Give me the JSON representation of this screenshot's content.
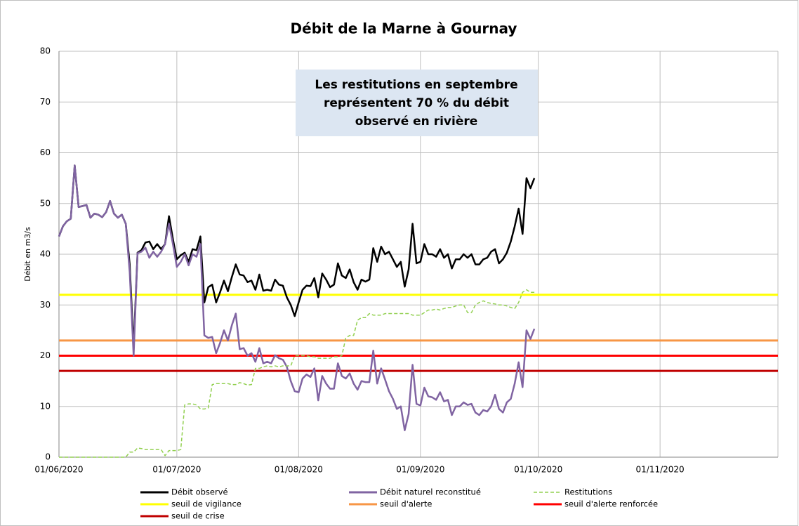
{
  "chart_data": {
    "type": "line",
    "title": "Débit de la Marne à Gournay",
    "ylabel": "Débit en m3/s",
    "annotation": {
      "lines": [
        "Les restitutions en septembre",
        "représentent 70 % du débit",
        "observé en rivière"
      ]
    },
    "x": [
      "2020-06-01",
      "2020-06-02",
      "2020-06-03",
      "2020-06-04",
      "2020-06-05",
      "2020-06-06",
      "2020-06-07",
      "2020-06-08",
      "2020-06-09",
      "2020-06-10",
      "2020-06-11",
      "2020-06-12",
      "2020-06-13",
      "2020-06-14",
      "2020-06-15",
      "2020-06-16",
      "2020-06-17",
      "2020-06-18",
      "2020-06-19",
      "2020-06-20",
      "2020-06-21",
      "2020-06-22",
      "2020-06-23",
      "2020-06-24",
      "2020-06-25",
      "2020-06-26",
      "2020-06-27",
      "2020-06-28",
      "2020-06-29",
      "2020-06-30",
      "2020-07-01",
      "2020-07-02",
      "2020-07-03",
      "2020-07-04",
      "2020-07-05",
      "2020-07-06",
      "2020-07-07",
      "2020-07-08",
      "2020-07-09",
      "2020-07-10",
      "2020-07-11",
      "2020-07-12",
      "2020-07-13",
      "2020-07-14",
      "2020-07-15",
      "2020-07-16",
      "2020-07-17",
      "2020-07-18",
      "2020-07-19",
      "2020-07-20",
      "2020-07-21",
      "2020-07-22",
      "2020-07-23",
      "2020-07-24",
      "2020-07-25",
      "2020-07-26",
      "2020-07-27",
      "2020-07-28",
      "2020-07-29",
      "2020-07-30",
      "2020-07-31",
      "2020-08-01",
      "2020-08-02",
      "2020-08-03",
      "2020-08-04",
      "2020-08-05",
      "2020-08-06",
      "2020-08-07",
      "2020-08-08",
      "2020-08-09",
      "2020-08-10",
      "2020-08-11",
      "2020-08-12",
      "2020-08-13",
      "2020-08-14",
      "2020-08-15",
      "2020-08-16",
      "2020-08-17",
      "2020-08-18",
      "2020-08-19",
      "2020-08-20",
      "2020-08-21",
      "2020-08-22",
      "2020-08-23",
      "2020-08-24",
      "2020-08-25",
      "2020-08-26",
      "2020-08-27",
      "2020-08-28",
      "2020-08-29",
      "2020-08-30",
      "2020-08-31",
      "2020-09-01",
      "2020-09-02",
      "2020-09-03",
      "2020-09-04",
      "2020-09-05",
      "2020-09-06",
      "2020-09-07",
      "2020-09-08",
      "2020-09-09",
      "2020-09-10",
      "2020-09-11",
      "2020-09-12",
      "2020-09-13",
      "2020-09-14",
      "2020-09-15",
      "2020-09-16",
      "2020-09-17",
      "2020-09-18",
      "2020-09-19",
      "2020-09-20",
      "2020-09-21",
      "2020-09-22",
      "2020-09-23",
      "2020-09-24",
      "2020-09-25",
      "2020-09-26",
      "2020-09-27",
      "2020-09-28",
      "2020-09-29",
      "2020-09-30"
    ],
    "series": [
      {
        "name": "Débit observé",
        "color": "#000000",
        "style": "solid",
        "values": [
          43.5,
          45.5,
          46.5,
          47,
          57.5,
          49.3,
          49.5,
          49.7,
          47.2,
          48,
          47.8,
          47.3,
          48.3,
          50.5,
          48,
          47.2,
          47.8,
          46,
          38,
          21.5,
          40.3,
          40.8,
          42.3,
          42.5,
          41,
          42,
          41,
          42,
          47.5,
          43,
          39,
          39.8,
          40.3,
          38.5,
          41,
          40.8,
          43.5,
          30.5,
          33.5,
          34,
          30.5,
          32.5,
          34.8,
          32.7,
          35.5,
          38,
          36,
          35.8,
          34.5,
          34.8,
          33,
          36,
          32.8,
          33,
          32.8,
          35,
          34,
          33.8,
          31.5,
          30,
          27.8,
          30.5,
          33,
          33.8,
          33.7,
          35.3,
          31.5,
          36.2,
          35,
          33.5,
          34,
          38.2,
          35.8,
          35.3,
          37,
          34.5,
          33,
          35,
          34.6,
          35,
          41.2,
          38.5,
          41.5,
          40,
          40.5,
          39,
          37.5,
          38.5,
          33.6,
          37,
          46,
          38.2,
          38.5,
          42,
          40,
          40,
          39.5,
          41,
          39.3,
          40,
          37.2,
          39,
          39,
          40,
          39.3,
          40,
          38,
          38,
          39,
          39.3,
          40.5,
          41,
          38.2,
          39,
          40.3,
          42.5,
          45.5,
          49,
          44,
          55,
          53,
          55
        ]
      },
      {
        "name": "Débit naturel reconstitué",
        "color": "#8064a2",
        "style": "solid",
        "values": [
          43.5,
          45.5,
          46.5,
          47,
          57.5,
          49.3,
          49.5,
          49.7,
          47.2,
          48,
          47.8,
          47.3,
          48.3,
          50.5,
          48,
          47.2,
          47.8,
          46,
          36.5,
          20,
          40.2,
          40.5,
          41.3,
          39.3,
          40.5,
          39.5,
          40.5,
          42,
          46,
          42,
          37.5,
          38.5,
          40,
          37.8,
          40,
          39.5,
          42,
          24,
          23.5,
          23.7,
          20.5,
          22.5,
          25,
          23,
          26,
          28.3,
          21.3,
          21.5,
          20,
          20.5,
          18.8,
          21.5,
          18.5,
          18.8,
          18.5,
          20.1,
          19.5,
          19.2,
          17.8,
          15,
          13,
          12.8,
          15.5,
          16.3,
          15.8,
          17.5,
          11.2,
          16,
          14.5,
          13.5,
          13.5,
          18.5,
          16,
          15.5,
          16.5,
          14.5,
          13.3,
          15,
          14.8,
          14.8,
          21,
          14.5,
          17.5,
          15.3,
          13,
          11.5,
          9.5,
          10,
          5.3,
          8.5,
          18.2,
          10.5,
          10.2,
          13.7,
          12,
          11.8,
          11.3,
          12.8,
          11,
          11.3,
          8.3,
          10,
          10,
          10.8,
          10.3,
          10.5,
          8.8,
          8.3,
          9.3,
          9,
          10,
          12.3,
          9.5,
          8.8,
          10.8,
          11.5,
          14.5,
          18.7,
          13.8,
          25,
          23.3,
          25.3
        ]
      },
      {
        "name": "Restitutions",
        "color": "#92d050",
        "style": "dashed",
        "values": [
          0,
          0,
          0,
          0,
          0,
          0,
          0,
          0,
          0,
          0,
          0,
          0,
          0,
          0,
          0,
          0,
          0,
          0,
          1,
          1,
          1.8,
          1.7,
          1.5,
          1.5,
          1.5,
          1.5,
          1.5,
          0.3,
          1.3,
          1.3,
          1.3,
          1.5,
          10.3,
          10.5,
          10.5,
          10.3,
          9.5,
          9.5,
          9.7,
          14.3,
          14.5,
          14.5,
          14.5,
          14.5,
          14.3,
          14.3,
          14.7,
          14.5,
          14.2,
          14.3,
          17.5,
          17.5,
          17.8,
          18,
          17.8,
          18,
          17.8,
          18,
          18,
          18,
          20,
          20,
          20,
          20,
          19.8,
          19.8,
          19.5,
          19.5,
          19.5,
          19.5,
          19.8,
          19.8,
          20,
          23.5,
          24,
          24,
          27,
          27.5,
          27.5,
          28.3,
          28,
          28,
          28,
          28.3,
          28.3,
          28.3,
          28.3,
          28.3,
          28.3,
          28.3,
          28,
          28,
          28,
          28.5,
          29,
          29,
          29.2,
          29,
          29.3,
          29.5,
          29.5,
          29.8,
          30,
          30,
          28.5,
          28.5,
          30,
          30.5,
          30.8,
          30.5,
          30.3,
          30.2,
          30,
          30,
          29.8,
          29.5,
          29.3,
          30.5,
          32.5,
          33,
          32.5,
          32.5
        ]
      }
    ],
    "thresholds": [
      {
        "name": "seuil de vigilance",
        "color": "#ffff00",
        "value": 32
      },
      {
        "name": "seuil d'alerte",
        "color": "#f79646",
        "value": 23
      },
      {
        "name": "seuil d'alerte renforcée",
        "color": "#ff0000",
        "value": 20
      },
      {
        "name": "seuil de crise",
        "color": "#c00000",
        "value": 17
      }
    ],
    "xlim": [
      "2020-06-01",
      "2020-12-01"
    ],
    "xticks": [
      {
        "value": "2020-06-01",
        "label": "01/06/2020"
      },
      {
        "value": "2020-07-01",
        "label": "01/07/2020"
      },
      {
        "value": "2020-08-01",
        "label": "01/08/2020"
      },
      {
        "value": "2020-09-01",
        "label": "01/09/2020"
      },
      {
        "value": "2020-10-01",
        "label": "01/10/2020"
      },
      {
        "value": "2020-11-01",
        "label": "01/11/2020"
      },
      "2020-12-01"
    ],
    "ylim": [
      0,
      80
    ],
    "yticks": [
      0,
      10,
      20,
      30,
      40,
      50,
      60,
      70,
      80
    ],
    "grid": true,
    "legend": "bottom"
  }
}
